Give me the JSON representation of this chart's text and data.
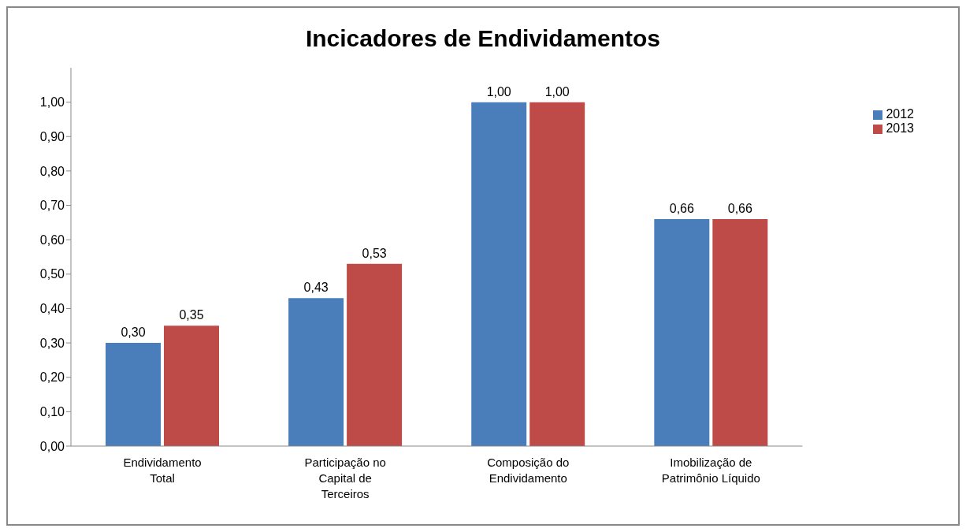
{
  "chart_data": {
    "type": "bar",
    "title": "Incicadores de Endividamentos",
    "categories": [
      "Endividamento Total",
      "Participação no Capital de Terceiros",
      "Composição do Endividamento",
      "Imobilização de Patrimônio Líquido"
    ],
    "series": [
      {
        "name": "2012",
        "color": "#4a7ebb",
        "values": [
          0.3,
          0.43,
          1.0,
          0.66
        ],
        "value_labels": [
          "0,30",
          "0,43",
          "1,00",
          "0,66"
        ]
      },
      {
        "name": "2013",
        "color": "#be4b48",
        "values": [
          0.35,
          0.53,
          1.0,
          0.66
        ],
        "value_labels": [
          "0,35",
          "0,53",
          "1,00",
          "0,66"
        ]
      }
    ],
    "ylim": [
      0,
      1.1
    ],
    "yticks": [
      {
        "value": 0,
        "label": "0,00"
      },
      {
        "value": 0.1,
        "label": "0,10"
      },
      {
        "value": 0.2,
        "label": "0,20"
      },
      {
        "value": 0.3,
        "label": "0,30"
      },
      {
        "value": 0.4,
        "label": "0,40"
      },
      {
        "value": 0.5,
        "label": "0,50"
      },
      {
        "value": 0.6,
        "label": "0,60"
      },
      {
        "value": 0.7,
        "label": "0,70"
      },
      {
        "value": 0.8,
        "label": "0,80"
      },
      {
        "value": 0.9,
        "label": "0,90"
      },
      {
        "value": 1.0,
        "label": "1,00"
      }
    ],
    "grid": false,
    "legend": "top right"
  }
}
